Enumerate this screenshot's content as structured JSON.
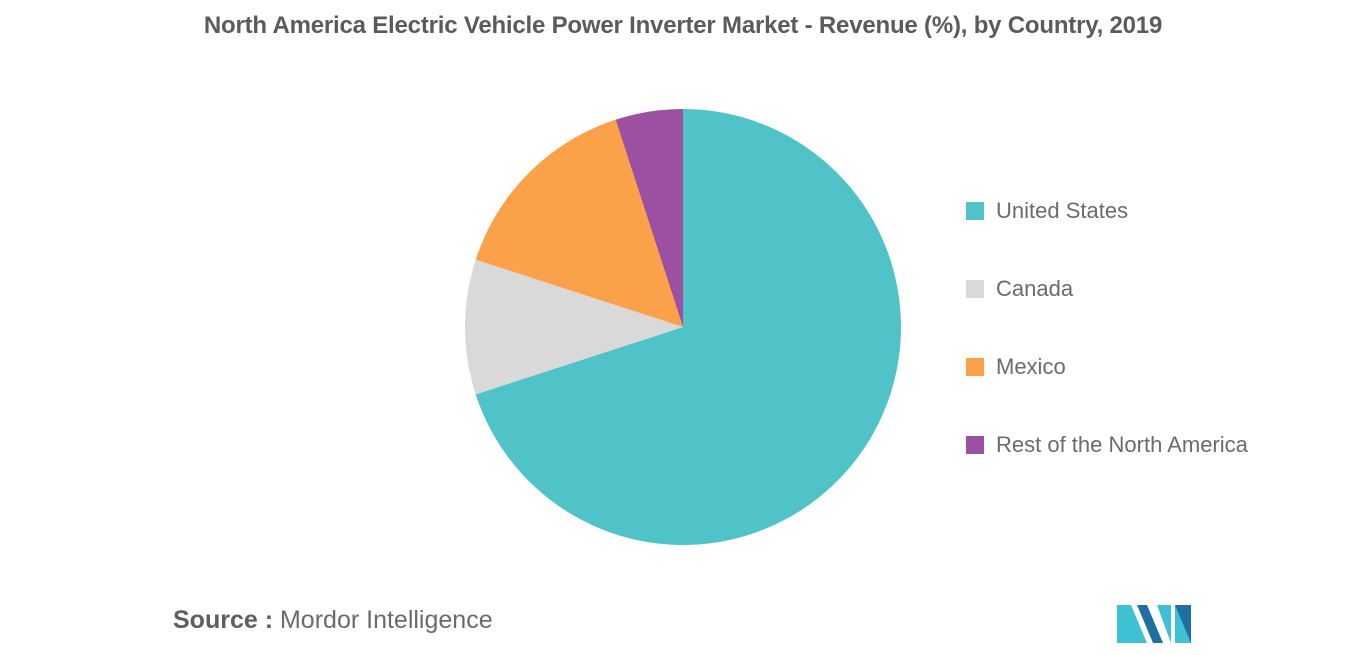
{
  "title": "North America Electric Vehicle Power Inverter Market - Revenue (%), by Country, 2019",
  "source": {
    "label": "Source :",
    "value": "Mordor Intelligence"
  },
  "logo": {
    "icon": "mordor-intelligence-logo",
    "colors": [
      "#3ec1d3",
      "#1f6fa3"
    ]
  },
  "chart_data": {
    "type": "pie",
    "title": "North America Electric Vehicle Power Inverter Market - Revenue (%), by Country, 2019",
    "start_angle_deg": 0,
    "direction": "clockwise",
    "legend_position": "right",
    "slices": [
      {
        "label": "United States",
        "value": 70,
        "color": "#50c3c8"
      },
      {
        "label": "Canada",
        "value": 10,
        "color": "#d9d9d9"
      },
      {
        "label": "Mexico",
        "value": 15,
        "color": "#fba14a"
      },
      {
        "label": "Rest of the North America",
        "value": 5,
        "color": "#9b51a0"
      }
    ]
  }
}
